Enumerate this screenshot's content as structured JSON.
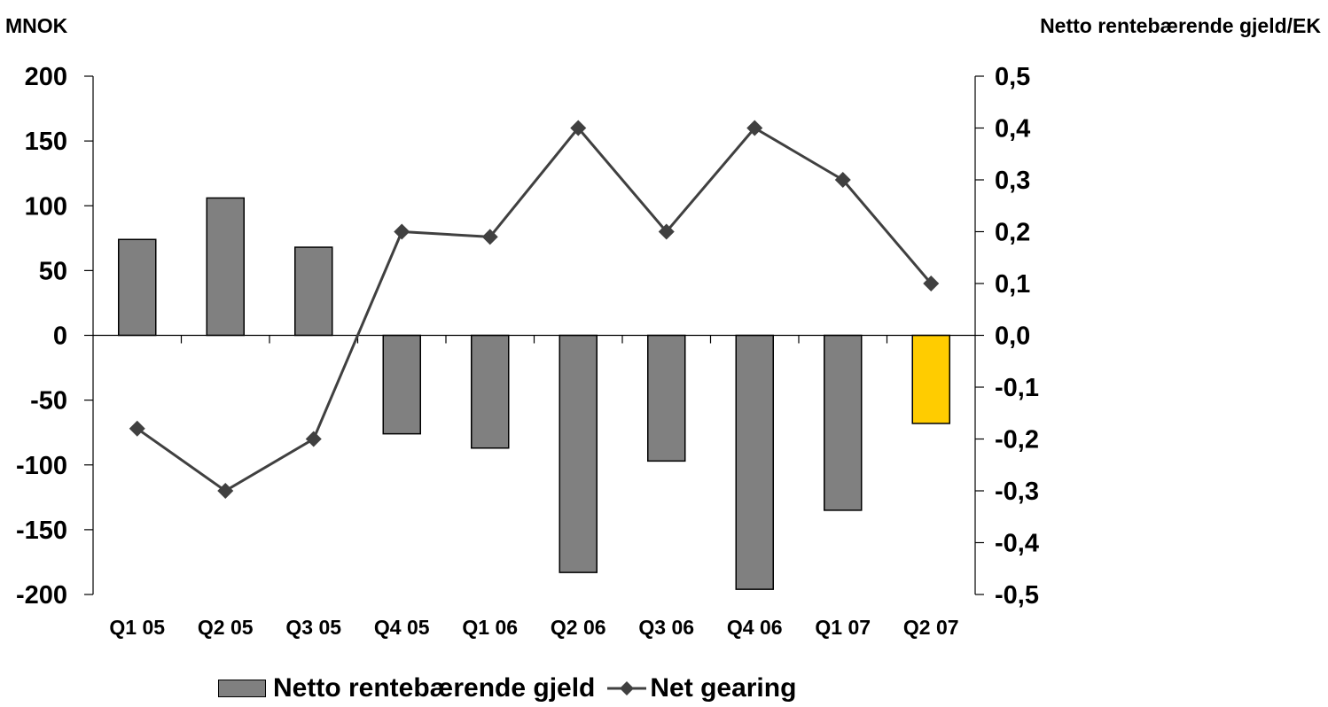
{
  "chart_data": {
    "type": "bar",
    "categories": [
      "Q1 05",
      "Q2 05",
      "Q3 05",
      "Q4 05",
      "Q1 06",
      "Q2 06",
      "Q3 06",
      "Q4 06",
      "Q1 07",
      "Q2 07"
    ],
    "series": [
      {
        "name": "Netto rentebærende gjeld",
        "type": "bar",
        "axis": "left",
        "values": [
          74,
          106,
          68,
          -76,
          -87,
          -183,
          -97,
          -196,
          -135,
          -68
        ],
        "color": "#808080",
        "highlight_color": "#FFCC00",
        "highlight_index": 9
      },
      {
        "name": "Net gearing",
        "type": "line",
        "axis": "right",
        "values": [
          -0.18,
          -0.3,
          -0.2,
          0.2,
          0.19,
          0.4,
          0.2,
          0.4,
          0.3,
          0.1
        ],
        "color": "#404040",
        "marker": "diamond"
      }
    ],
    "ylabel": "MNOK",
    "y2label": "Netto rentebærende gjeld/EK",
    "ylim": [
      -200,
      200
    ],
    "y2lim": [
      -0.5,
      0.5
    ],
    "yticks": [
      "200",
      "150",
      "100",
      "50",
      "0",
      "-50",
      "-100",
      "-150",
      "-200"
    ],
    "y2ticks": [
      "0,5",
      "0,4",
      "0,3",
      "0,2",
      "0,1",
      "0,0",
      "-0,1",
      "-0,2",
      "-0,3",
      "-0,4",
      "-0,5"
    ],
    "grid": false,
    "legend": "bottom"
  }
}
